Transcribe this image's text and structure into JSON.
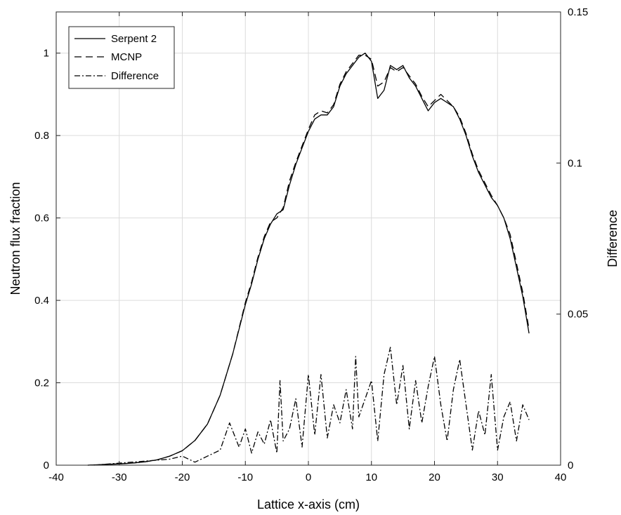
{
  "chart_data": {
    "type": "line",
    "title": "",
    "xlabel": "Lattice x-axis (cm)",
    "ylabel_left": "Neutron flux fraction",
    "ylabel_right": "Difference",
    "xlim": [
      -40,
      40
    ],
    "ylim_left": [
      0,
      1.1
    ],
    "ylim_right": [
      0,
      0.15
    ],
    "x_ticks": [
      "-40",
      "-30",
      "-20",
      "-10",
      "0",
      "10",
      "20",
      "30",
      "40"
    ],
    "y_left_ticks": [
      "0",
      "0.2",
      "0.4",
      "0.6",
      "0.8",
      "1"
    ],
    "y_right_ticks": [
      "0",
      "0.05",
      "0.1",
      "0.15"
    ],
    "grid": true,
    "legend_position": "top-left",
    "series": [
      {
        "name": "Serpent 2",
        "axis": "left",
        "style": "solid",
        "x": [
          -35,
          -32,
          -30,
          -28,
          -26,
          -24,
          -22,
          -20,
          -18,
          -16,
          -14,
          -12,
          -10,
          -9,
          -8,
          -7,
          -6,
          -5,
          -4,
          -3,
          -2,
          -1,
          0,
          1,
          2,
          3,
          4,
          5,
          6,
          7,
          8,
          9,
          10,
          11,
          12,
          13,
          14,
          15,
          16,
          17,
          18,
          19,
          20,
          21,
          22,
          23,
          24,
          25,
          26,
          27,
          28,
          29,
          30,
          31,
          32,
          33,
          34,
          35
        ],
        "values": [
          0.0,
          0.002,
          0.003,
          0.005,
          0.008,
          0.013,
          0.022,
          0.035,
          0.06,
          0.1,
          0.17,
          0.27,
          0.39,
          0.44,
          0.5,
          0.55,
          0.585,
          0.61,
          0.62,
          0.68,
          0.73,
          0.77,
          0.81,
          0.84,
          0.85,
          0.85,
          0.87,
          0.92,
          0.95,
          0.97,
          0.99,
          1.0,
          0.98,
          0.89,
          0.91,
          0.97,
          0.96,
          0.97,
          0.94,
          0.92,
          0.89,
          0.86,
          0.88,
          0.89,
          0.88,
          0.87,
          0.84,
          0.8,
          0.75,
          0.71,
          0.68,
          0.65,
          0.63,
          0.6,
          0.55,
          0.48,
          0.41,
          0.32
        ]
      },
      {
        "name": "MCNP",
        "axis": "left",
        "style": "dashed",
        "x": [
          -35,
          -32,
          -30,
          -28,
          -26,
          -24,
          -22,
          -20,
          -18,
          -16,
          -14,
          -12,
          -10,
          -9,
          -8,
          -7,
          -6,
          -5,
          -4,
          -3,
          -2,
          -1,
          0,
          1,
          2,
          3,
          4,
          5,
          6,
          7,
          8,
          9,
          10,
          11,
          12,
          13,
          14,
          15,
          16,
          17,
          18,
          19,
          20,
          21,
          22,
          23,
          24,
          25,
          26,
          27,
          28,
          29,
          30,
          31,
          32,
          33,
          34,
          35
        ],
        "values": [
          0.0,
          0.002,
          0.003,
          0.005,
          0.008,
          0.013,
          0.022,
          0.035,
          0.06,
          0.1,
          0.17,
          0.27,
          0.395,
          0.445,
          0.505,
          0.555,
          0.59,
          0.6,
          0.625,
          0.69,
          0.735,
          0.775,
          0.815,
          0.85,
          0.86,
          0.855,
          0.875,
          0.925,
          0.955,
          0.975,
          0.995,
          0.995,
          0.985,
          0.92,
          0.93,
          0.965,
          0.955,
          0.965,
          0.945,
          0.925,
          0.895,
          0.87,
          0.885,
          0.9,
          0.885,
          0.87,
          0.845,
          0.805,
          0.755,
          0.715,
          0.685,
          0.655,
          0.63,
          0.6,
          0.56,
          0.49,
          0.42,
          0.33
        ]
      },
      {
        "name": "Difference",
        "axis": "right",
        "style": "dashdot",
        "x": [
          -34,
          -31,
          -28,
          -25,
          -22,
          -20,
          -18,
          -16,
          -14,
          -12.5,
          -11,
          -10,
          -9,
          -8,
          -7,
          -6,
          -5,
          -4.5,
          -4,
          -3,
          -2,
          -1,
          0,
          1,
          2,
          3,
          4,
          5,
          6,
          7,
          7.5,
          8,
          9,
          10,
          11,
          12,
          13,
          14,
          15,
          16,
          17,
          18,
          19,
          20,
          21,
          22,
          23,
          24,
          25,
          26,
          27,
          28,
          29,
          30,
          31,
          32,
          33,
          34,
          35
        ],
        "values": [
          0.0,
          0.0005,
          0.001,
          0.0015,
          0.002,
          0.003,
          0.001,
          0.003,
          0.005,
          0.014,
          0.006,
          0.012,
          0.004,
          0.011,
          0.007,
          0.015,
          0.004,
          0.028,
          0.008,
          0.012,
          0.022,
          0.006,
          0.03,
          0.01,
          0.03,
          0.009,
          0.02,
          0.014,
          0.025,
          0.012,
          0.036,
          0.016,
          0.022,
          0.028,
          0.008,
          0.03,
          0.039,
          0.02,
          0.033,
          0.012,
          0.028,
          0.014,
          0.026,
          0.036,
          0.02,
          0.008,
          0.025,
          0.035,
          0.02,
          0.005,
          0.018,
          0.01,
          0.03,
          0.005,
          0.016,
          0.021,
          0.008,
          0.02,
          0.015
        ]
      }
    ]
  }
}
